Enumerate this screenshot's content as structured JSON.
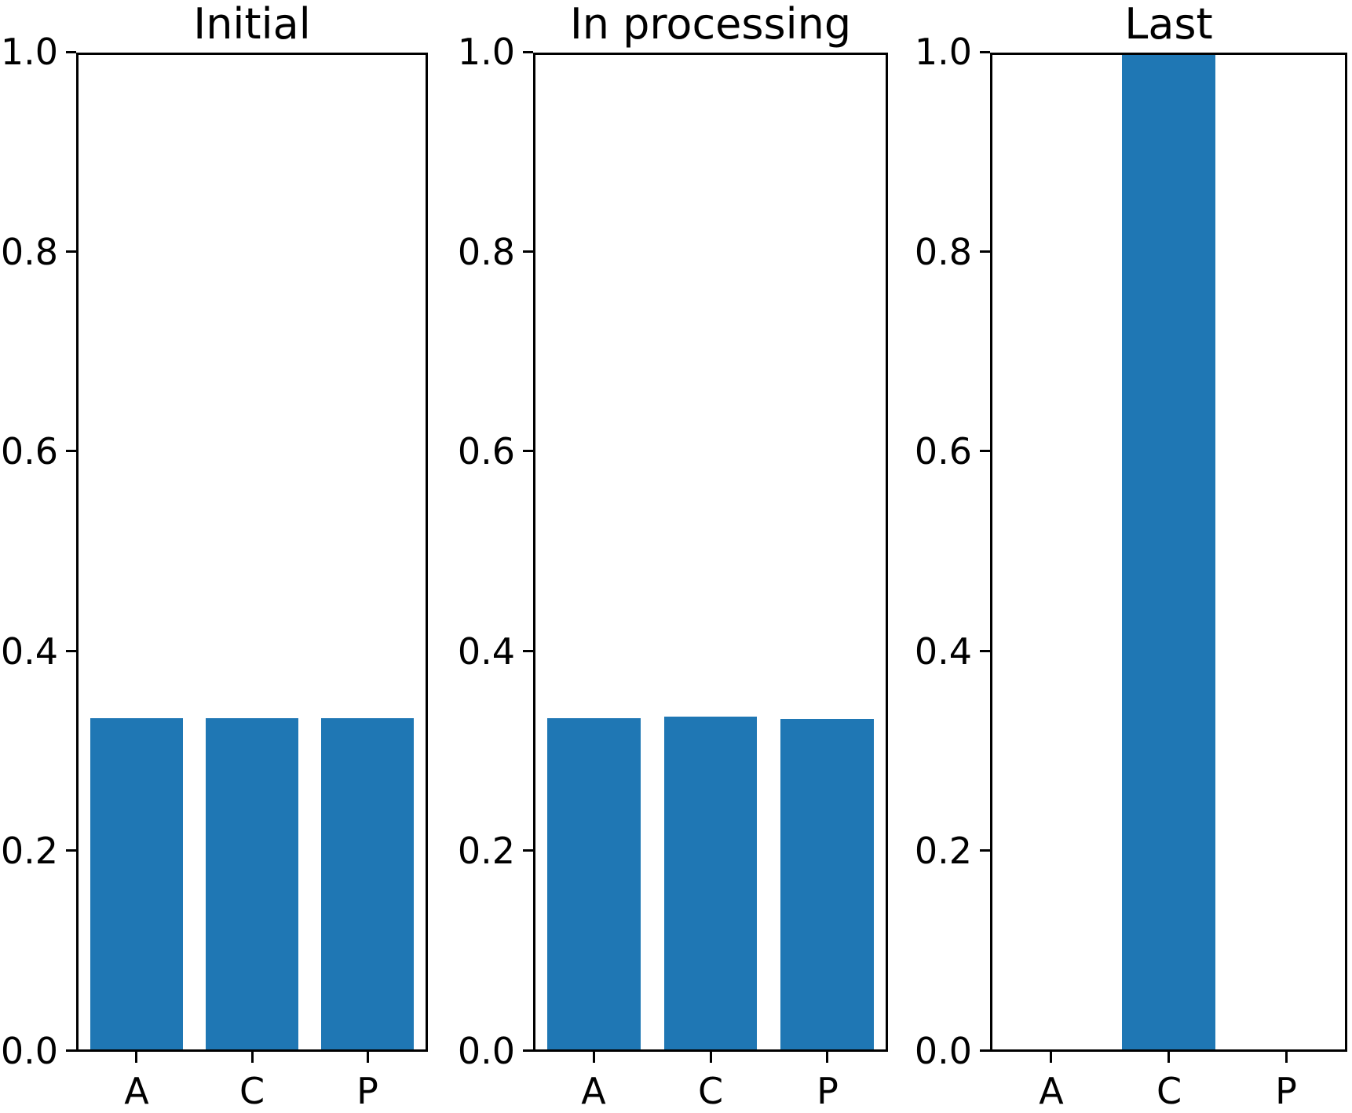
{
  "figure": {
    "background_color": "#ffffff",
    "bar_color": "#1f77b4",
    "axis_color": "#000000",
    "text_color": "#000000"
  },
  "chart_data": [
    {
      "type": "bar",
      "title": "Initial",
      "categories": [
        "A",
        "C",
        "P"
      ],
      "values": [
        0.333,
        0.333,
        0.333
      ],
      "xlabel": "",
      "ylabel": "",
      "ylim": [
        0.0,
        1.0
      ],
      "yticks": [
        0.0,
        0.2,
        0.4,
        0.6,
        0.8,
        1.0
      ],
      "ytick_labels": [
        "0.0",
        "0.2",
        "0.4",
        "0.6",
        "0.8",
        "1.0"
      ],
      "grid": false,
      "legend": null
    },
    {
      "type": "bar",
      "title": "In processing",
      "categories": [
        "A",
        "C",
        "P"
      ],
      "values": [
        0.333,
        0.335,
        0.332
      ],
      "xlabel": "",
      "ylabel": "",
      "ylim": [
        0.0,
        1.0
      ],
      "yticks": [
        0.0,
        0.2,
        0.4,
        0.6,
        0.8,
        1.0
      ],
      "ytick_labels": [
        "0.0",
        "0.2",
        "0.4",
        "0.6",
        "0.8",
        "1.0"
      ],
      "grid": false,
      "legend": null
    },
    {
      "type": "bar",
      "title": "Last",
      "categories": [
        "A",
        "C",
        "P"
      ],
      "values": [
        0.0,
        1.0,
        0.0
      ],
      "xlabel": "",
      "ylabel": "",
      "ylim": [
        0.0,
        1.0
      ],
      "yticks": [
        0.0,
        0.2,
        0.4,
        0.6,
        0.8,
        1.0
      ],
      "ytick_labels": [
        "0.0",
        "0.2",
        "0.4",
        "0.6",
        "0.8",
        "1.0"
      ],
      "grid": false,
      "legend": null
    }
  ]
}
